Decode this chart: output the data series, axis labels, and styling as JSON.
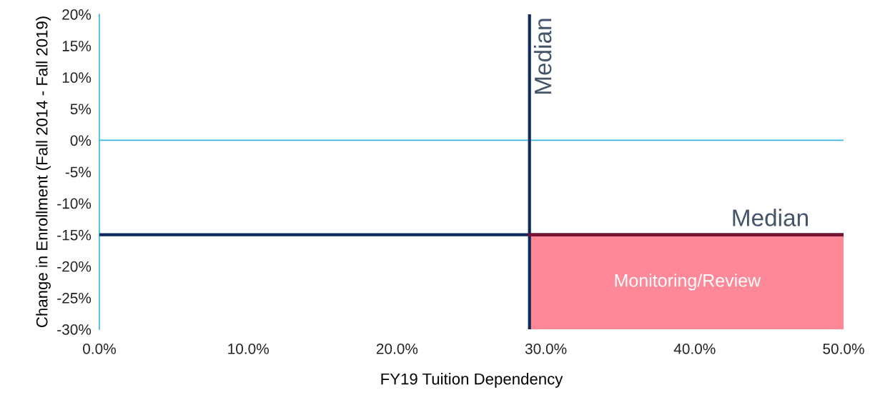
{
  "chart_data": {
    "type": "line",
    "xlabel": "FY19 Tuition Dependency",
    "ylabel": "Change in Enrollment (Fall 2014 - Fall 2019)",
    "xlim": [
      0,
      50
    ],
    "xticks": [
      {
        "value": 0,
        "label": "0.0%"
      },
      {
        "value": 10,
        "label": "10.0%"
      },
      {
        "value": 20,
        "label": "20.0%"
      },
      {
        "value": 30,
        "label": "30.0%"
      },
      {
        "value": 40,
        "label": "40.0%"
      },
      {
        "value": 50,
        "label": "50.0%"
      }
    ],
    "ylim": [
      -30,
      20
    ],
    "yticks": [
      {
        "value": -30,
        "label": "-30%"
      },
      {
        "value": -25,
        "label": "-25%"
      },
      {
        "value": -20,
        "label": "-20%"
      },
      {
        "value": -15,
        "label": "-15%"
      },
      {
        "value": -10,
        "label": "-10%"
      },
      {
        "value": -5,
        "label": "-5%"
      },
      {
        "value": 0,
        "label": "0%"
      },
      {
        "value": 5,
        "label": "5%"
      },
      {
        "value": 10,
        "label": "10%"
      },
      {
        "value": 15,
        "label": "15%"
      },
      {
        "value": 20,
        "label": "20%"
      }
    ],
    "grid": false,
    "series": [
      {
        "color": "#7a1030",
        "x": [
          28.9,
          50
        ],
        "values": [
          -15,
          -15
        ],
        "lower": [
          -30,
          -30
        ],
        "upper": [
          -15,
          -15
        ]
      }
    ],
    "annotations": [
      "Monitoring/Review"
    ],
    "ref_lines": [
      {
        "axis": "y",
        "value": 0,
        "color": "#3cb4e6"
      },
      {
        "axis": "x",
        "value": 28.9,
        "label": "Median",
        "color": "#0d2a5c"
      },
      {
        "axis": "y",
        "value": -15,
        "label": "Median",
        "color": "#0d2a5c"
      }
    ]
  }
}
